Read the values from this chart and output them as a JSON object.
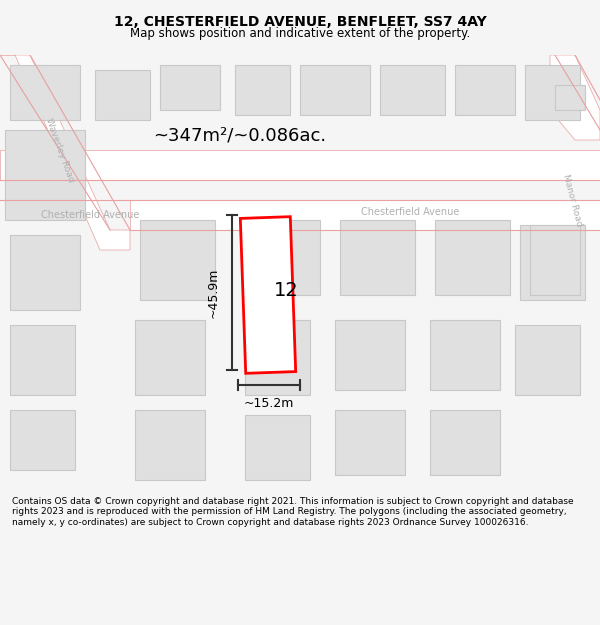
{
  "title": "12, CHESTERFIELD AVENUE, BENFLEET, SS7 4AY",
  "subtitle": "Map shows position and indicative extent of the property.",
  "area_label": "~347m²/~0.086ac.",
  "width_label": "~15.2m",
  "height_label": "~45.9m",
  "property_number": "12",
  "footer_text": "Contains OS data © Crown copyright and database right 2021. This information is subject to Crown copyright and database rights 2023 and is reproduced with the permission of HM Land Registry. The polygons (including the associated geometry, namely x, y co-ordinates) are subject to Crown copyright and database rights 2023 Ordnance Survey 100026316.",
  "bg_color": "#f5f5f5",
  "map_bg": "#f8f8f8",
  "road_fill": "#ffffff",
  "road_stroke": "#e8a0a0",
  "block_fill": "#e0e0e0",
  "block_stroke": "#c8c8c8",
  "property_stroke": "#ff0000",
  "property_fill": "#ffffff",
  "dim_color": "#333333",
  "label_color": "#b0b0b0",
  "title_color": "#000000",
  "figsize": [
    6.0,
    6.25
  ],
  "dpi": 100
}
